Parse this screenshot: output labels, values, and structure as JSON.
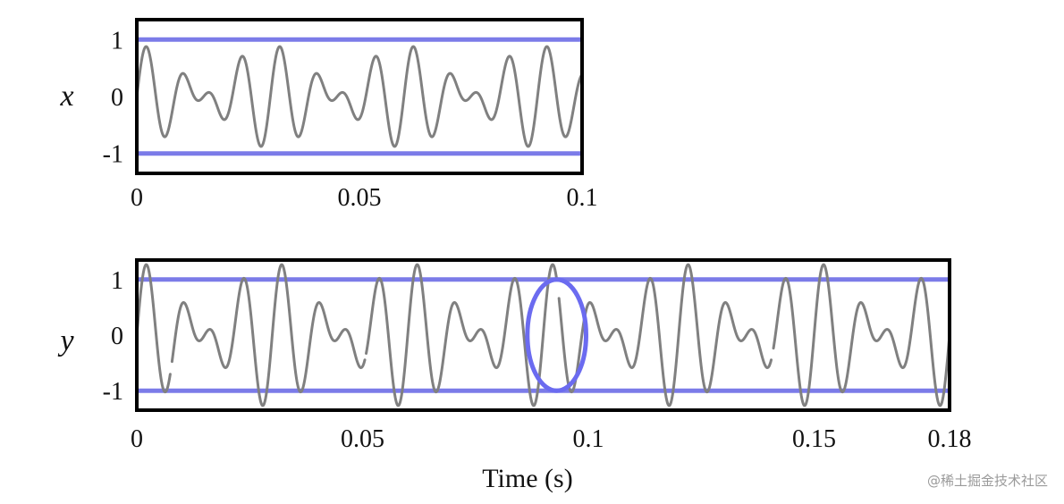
{
  "colors": {
    "signal": "#808080",
    "threshold": "#7b7be8",
    "frame": "#000000",
    "circle": "#6b6bf0"
  },
  "watermark": "@稀土掘金技术社区",
  "chart_data": [
    {
      "type": "line",
      "ylabel": "x",
      "xlabel": "",
      "xlim": [
        0,
        0.1
      ],
      "ylim": [
        -1.35,
        1.35
      ],
      "x_ticks": [
        {
          "v": 0,
          "label": "0"
        },
        {
          "v": 0.05,
          "label": "0.05"
        },
        {
          "v": 0.1,
          "label": "0.1"
        }
      ],
      "y_ticks": [
        {
          "v": 1,
          "label": "1"
        },
        {
          "v": 0,
          "label": "0"
        },
        {
          "v": -1,
          "label": "-1"
        }
      ],
      "thresholds": [
        1,
        -1
      ],
      "clipped": false,
      "series": [
        {
          "signal": "0.45*sin(2*pi*100*t) + 0.45*sin(2*pi*133.333*t)",
          "components": [
            {
              "amp": 0.45,
              "freq_hz": 100
            },
            {
              "amp": 0.45,
              "freq_hz": 133.333
            }
          ],
          "t_range": [
            0,
            0.1
          ]
        }
      ]
    },
    {
      "type": "line",
      "ylabel": "y",
      "xlabel": "Time (s)",
      "xlim": [
        0,
        0.18
      ],
      "ylim": [
        -1.35,
        1.35
      ],
      "x_ticks": [
        {
          "v": 0,
          "label": "0"
        },
        {
          "v": 0.05,
          "label": "0.05"
        },
        {
          "v": 0.1,
          "label": "0.1"
        },
        {
          "v": 0.15,
          "label": "0.15"
        },
        {
          "v": 0.18,
          "label": "0.18"
        }
      ],
      "y_ticks": [
        {
          "v": 1,
          "label": "1"
        },
        {
          "v": 0,
          "label": "0"
        },
        {
          "v": -1,
          "label": "-1"
        }
      ],
      "thresholds": [
        1,
        -1
      ],
      "clipped": true,
      "series": [
        {
          "signal": "0.65*sin(2*pi*100*t) + 0.65*sin(2*pi*133.333*t), drawn in segments",
          "components": [
            {
              "amp": 0.65,
              "freq_hz": 100
            },
            {
              "amp": 0.65,
              "freq_hz": 133.333
            }
          ],
          "segments": [
            [
              0,
              0.0074
            ],
            [
              0.0078,
              0.0505
            ],
            [
              0.0508,
              0.093
            ],
            [
              0.0935,
              0.1405
            ],
            [
              0.141,
              0.18
            ]
          ]
        }
      ],
      "annotation": {
        "shape": "ellipse",
        "cx": 0.093,
        "cy": 0,
        "rx": 0.0065,
        "ry": 1.0
      }
    }
  ]
}
